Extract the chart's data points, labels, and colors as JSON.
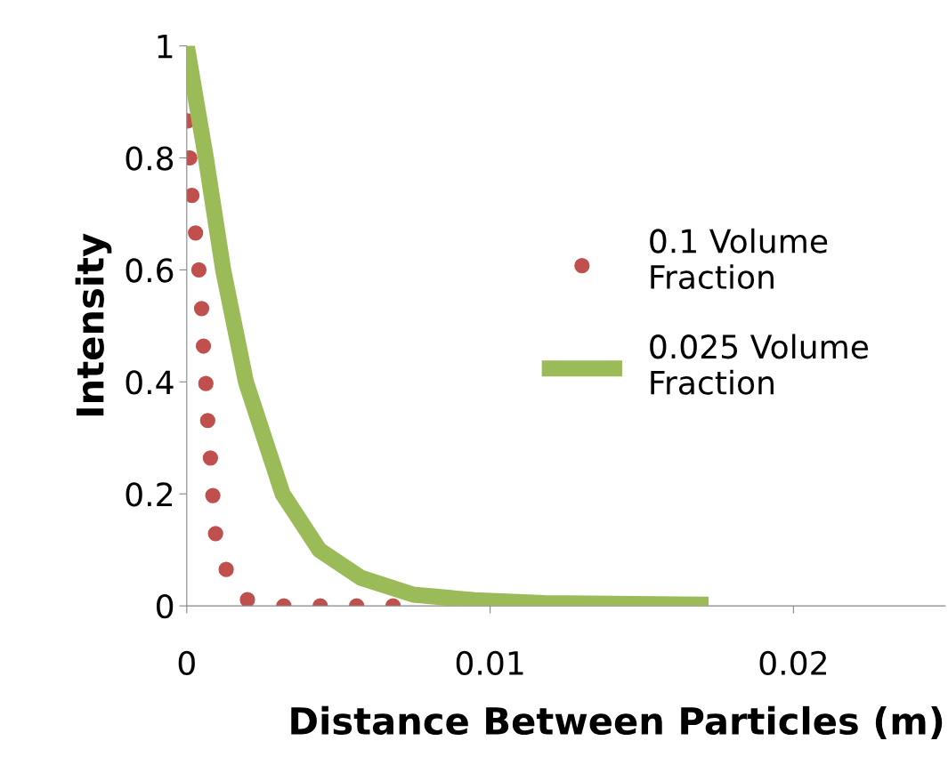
{
  "chart_data": {
    "type": "line",
    "xlabel": "Distance Between Particles (m)",
    "ylabel": "Intensity",
    "xlim": [
      0,
      0.025
    ],
    "xticks": [
      0,
      0.01,
      0.02
    ],
    "ylim": [
      0,
      1
    ],
    "yticks": [
      0,
      0.2,
      0.4,
      0.6,
      0.8,
      1
    ],
    "grid": false,
    "legend": "right",
    "series": [
      {
        "name": "0.1 Volume\nFraction",
        "type": "scatter",
        "marker": "circle",
        "color": "#c0504d",
        "x": [
          3e-05,
          0.0001,
          0.00017,
          0.00029,
          0.0004,
          0.00049,
          0.00055,
          0.00063,
          0.00069,
          0.00078,
          0.00086,
          0.00095,
          0.0013,
          0.002,
          0.0032,
          0.0044,
          0.0056,
          0.0068
        ],
        "values": [
          0.866,
          0.8,
          0.733,
          0.666,
          0.6,
          0.531,
          0.464,
          0.397,
          0.331,
          0.264,
          0.197,
          0.129,
          0.065,
          0.011,
          0,
          0,
          0,
          0
        ]
      },
      {
        "name": "0.025 Volume\nFraction",
        "line_style": "solid",
        "color": "#9bbb59",
        "x": [
          0,
          0.00063,
          0.0012,
          0.00195,
          0.00316,
          0.00437,
          0.00575,
          0.00747,
          0.0095,
          0.0118,
          0.0172
        ],
        "values": [
          1,
          0.8,
          0.6,
          0.4,
          0.2,
          0.1,
          0.05,
          0.02,
          0.01,
          0.005,
          0.002
        ]
      }
    ]
  }
}
